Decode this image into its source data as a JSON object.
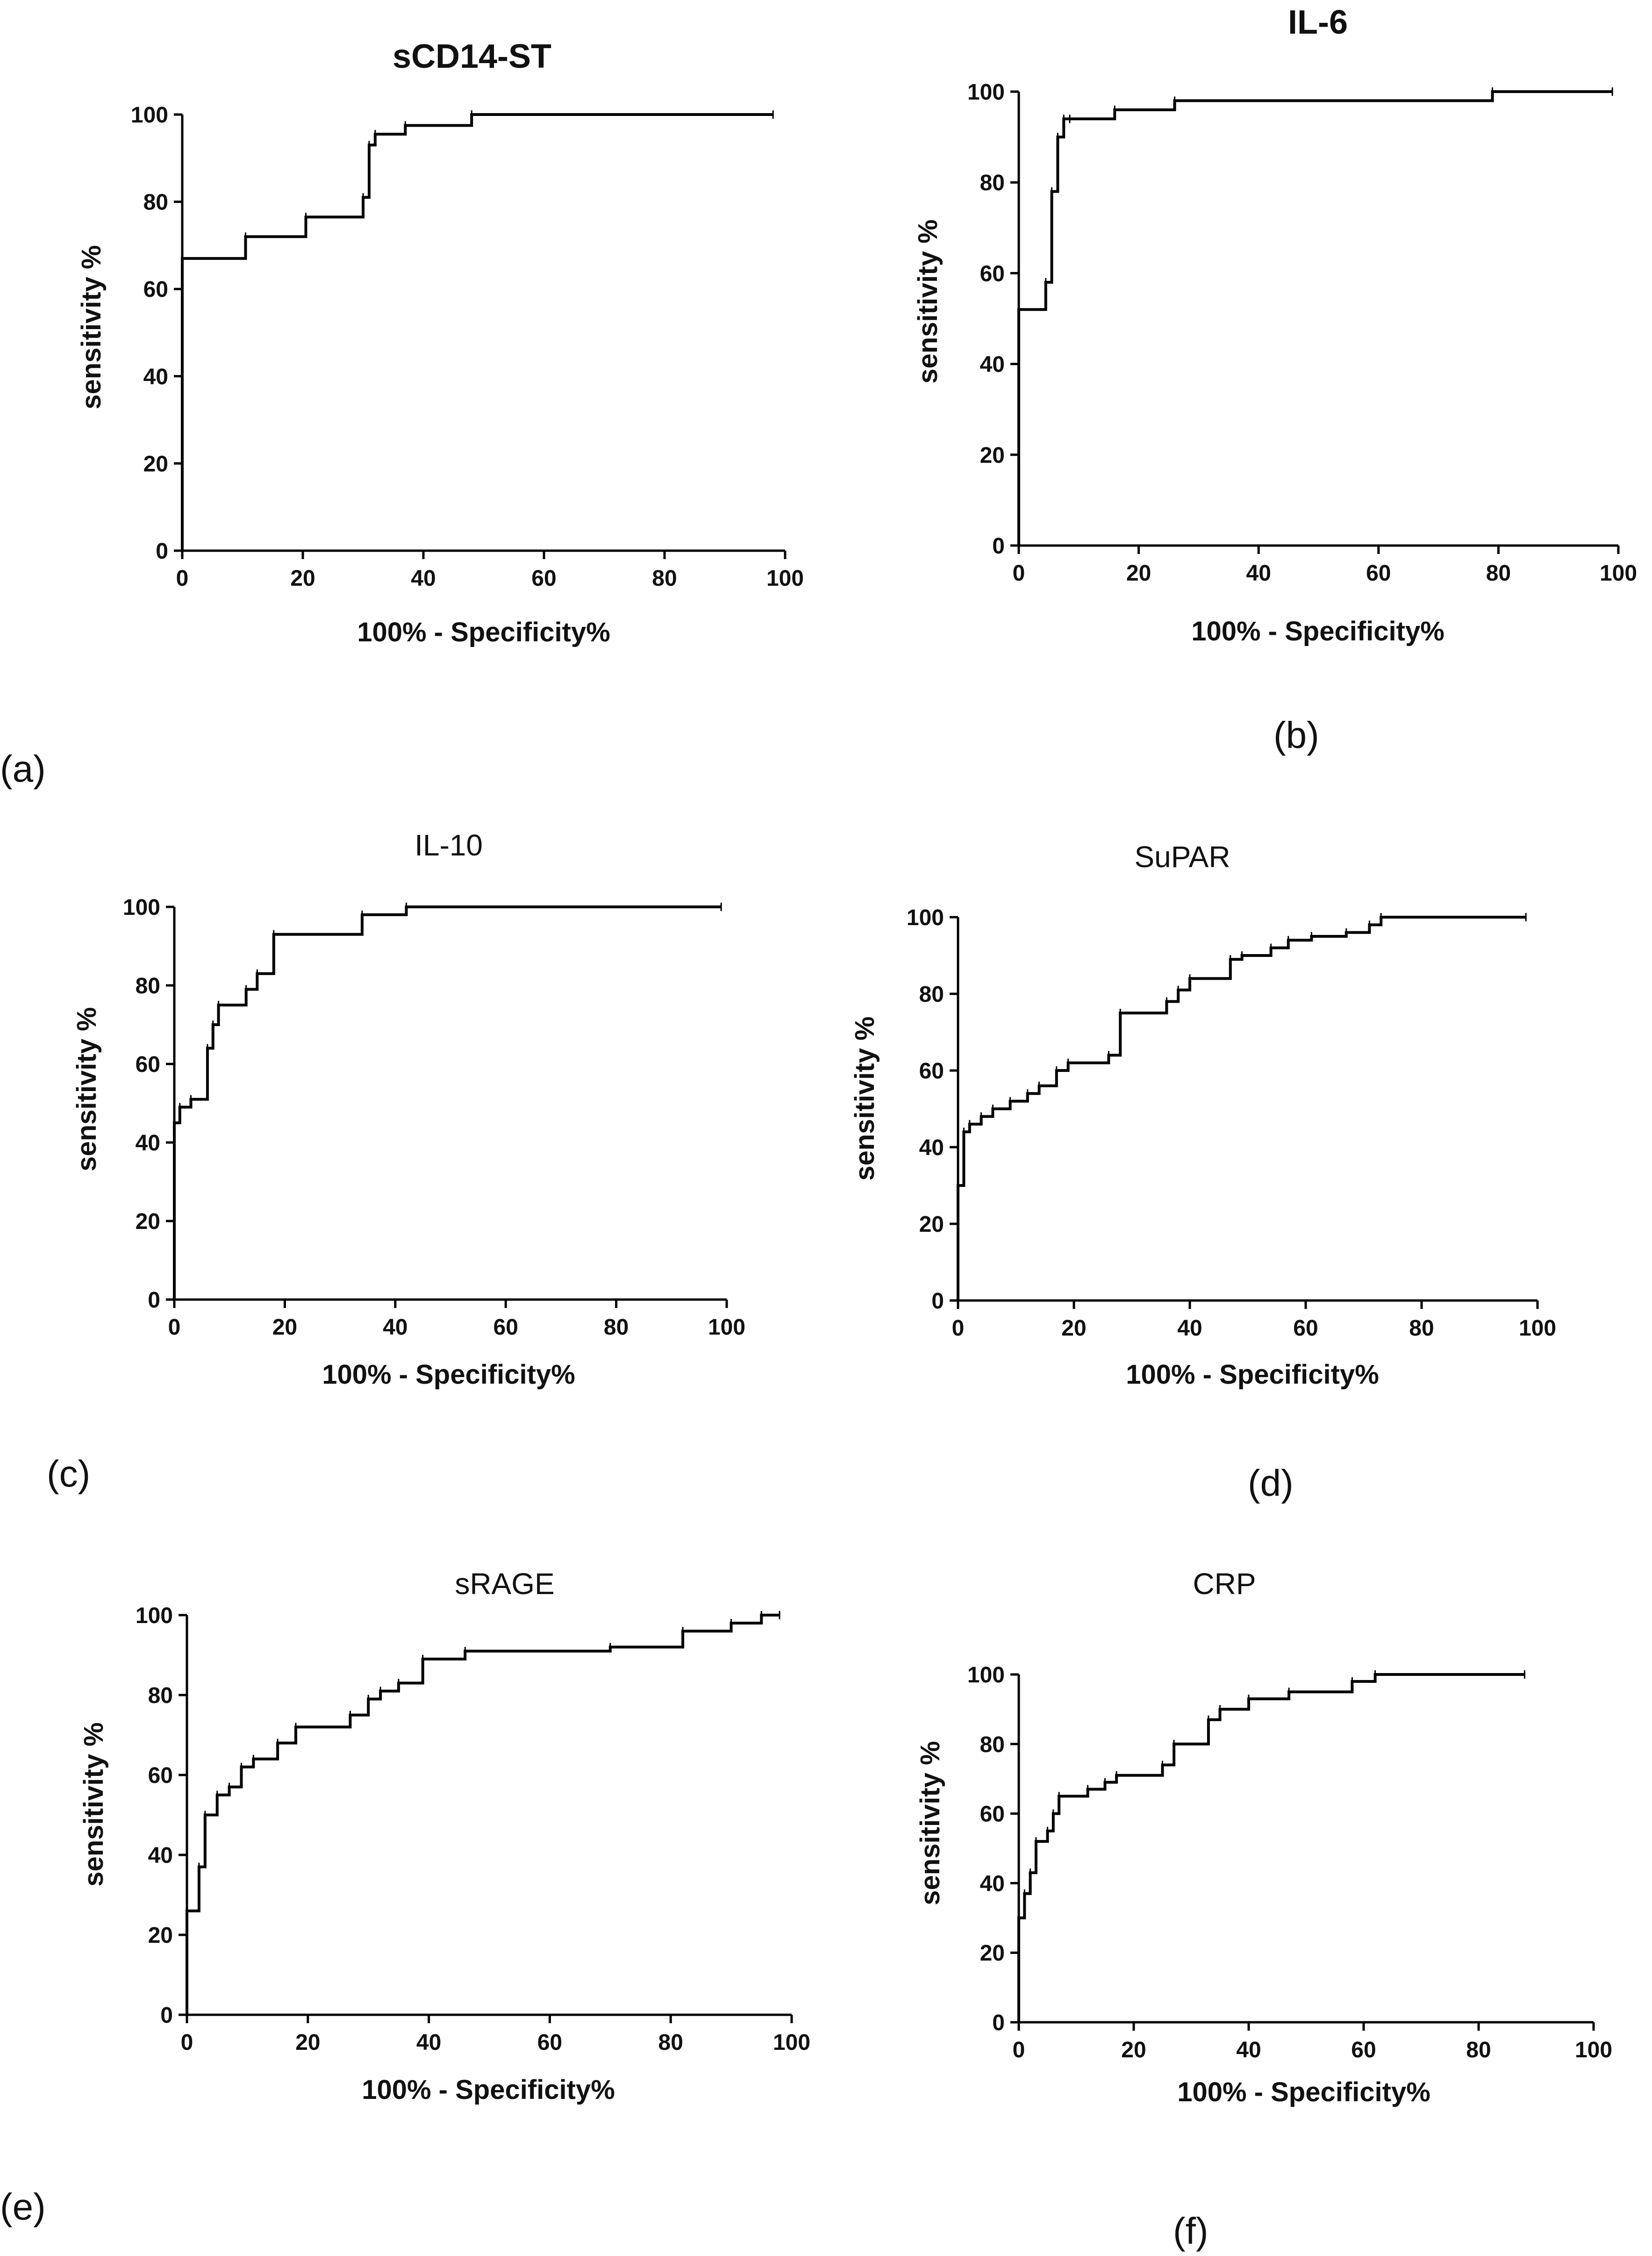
{
  "figure": {
    "panel_labels": [
      "(a)",
      "(b)",
      "(c)",
      "(d)",
      "(e)",
      "(f)"
    ]
  },
  "chart_data": [
    {
      "type": "line",
      "panel": "(a)",
      "title": "sCD14-ST",
      "xlabel": "100% - Specificity%",
      "ylabel": "sensitivity %",
      "xlim": [
        0,
        100
      ],
      "ylim": [
        0,
        100
      ],
      "xticks": [
        0,
        20,
        40,
        60,
        80,
        100
      ],
      "yticks": [
        0,
        20,
        40,
        60,
        80,
        100
      ],
      "grid": false,
      "step": true,
      "censor_ticks": true,
      "x": [
        0,
        0,
        10.5,
        20.5,
        30,
        31,
        32,
        37,
        48,
        98
      ],
      "y": [
        0,
        67,
        72,
        76.5,
        81,
        93,
        95.5,
        97.5,
        100,
        100
      ]
    },
    {
      "type": "line",
      "panel": "(b)",
      "title": "IL-6",
      "xlabel": "100% - Specificity%",
      "ylabel": "sensitivity %",
      "xlim": [
        0,
        100
      ],
      "ylim": [
        0,
        100
      ],
      "xticks": [
        0,
        20,
        40,
        60,
        80,
        100
      ],
      "yticks": [
        0,
        20,
        40,
        60,
        80,
        100
      ],
      "grid": false,
      "step": true,
      "censor_ticks": true,
      "x": [
        0,
        0,
        4.5,
        5.5,
        6.5,
        7.5,
        8.5,
        16,
        26,
        79,
        99
      ],
      "y": [
        0,
        52,
        58,
        78,
        90,
        94,
        94,
        96,
        98,
        100,
        100
      ]
    },
    {
      "type": "line",
      "panel": "(c)",
      "title": "IL-10",
      "xlabel": "100% - Specificity%",
      "ylabel": "sensitivity %",
      "xlim": [
        0,
        100
      ],
      "ylim": [
        0,
        100
      ],
      "xticks": [
        0,
        20,
        40,
        60,
        80,
        100
      ],
      "yticks": [
        0,
        20,
        40,
        60,
        80,
        100
      ],
      "grid": false,
      "step": true,
      "censor_ticks": true,
      "x": [
        0,
        0,
        1,
        3,
        6,
        7,
        8,
        13,
        15,
        18,
        34,
        42,
        99
      ],
      "y": [
        0,
        45,
        49,
        51,
        64,
        70,
        75,
        79,
        83,
        93,
        98,
        100,
        100
      ]
    },
    {
      "type": "line",
      "panel": "(d)",
      "title": "SuPAR",
      "xlabel": "100% - Specificity%",
      "ylabel": "sensitivity %",
      "xlim": [
        0,
        100
      ],
      "ylim": [
        0,
        100
      ],
      "xticks": [
        0,
        20,
        40,
        60,
        80,
        100
      ],
      "yticks": [
        0,
        20,
        40,
        60,
        80,
        100
      ],
      "grid": false,
      "step": true,
      "censor_ticks": true,
      "x": [
        0,
        0,
        1,
        2,
        4,
        6,
        9,
        12,
        14,
        17,
        19,
        26,
        28,
        36,
        38,
        40,
        47,
        49,
        54,
        57,
        61,
        67,
        71,
        73,
        98
      ],
      "y": [
        0,
        30,
        44,
        46,
        48,
        50,
        52,
        54,
        56,
        60,
        62,
        64,
        75,
        78,
        81,
        84,
        89,
        90,
        92,
        94,
        95,
        96,
        98,
        100,
        100
      ]
    },
    {
      "type": "line",
      "panel": "(e)",
      "title": "sRAGE",
      "xlabel": "100% - Specificity%",
      "ylabel": "sensitivity %",
      "xlim": [
        0,
        100
      ],
      "ylim": [
        0,
        100
      ],
      "xticks": [
        0,
        20,
        40,
        60,
        80,
        100
      ],
      "yticks": [
        0,
        20,
        40,
        60,
        80,
        100
      ],
      "grid": false,
      "step": true,
      "censor_ticks": true,
      "x": [
        0,
        0,
        2,
        3,
        5,
        7,
        9,
        11,
        15,
        18,
        27,
        30,
        32,
        35,
        39,
        46,
        70,
        82,
        90,
        95,
        98
      ],
      "y": [
        0,
        26,
        37,
        50,
        55,
        57,
        62,
        64,
        68,
        72,
        75,
        79,
        81,
        83,
        89,
        91,
        92,
        96,
        98,
        100,
        100
      ]
    },
    {
      "type": "line",
      "panel": "(f)",
      "title": "CRP",
      "xlabel": "100% - Specificity%",
      "ylabel": "sensitivity %",
      "xlim": [
        0,
        100
      ],
      "ylim": [
        0,
        100
      ],
      "xticks": [
        0,
        20,
        40,
        60,
        80,
        100
      ],
      "yticks": [
        0,
        20,
        40,
        60,
        80,
        100
      ],
      "grid": false,
      "step": true,
      "censor_ticks": true,
      "x": [
        0,
        0,
        1,
        2,
        3,
        5,
        6,
        7,
        12,
        15,
        17,
        25,
        27,
        33,
        35,
        40,
        47,
        58,
        62,
        88
      ],
      "y": [
        0,
        30,
        37,
        43,
        52,
        55,
        60,
        65,
        67,
        69,
        71,
        74,
        80,
        87,
        90,
        93,
        95,
        98,
        100,
        100
      ]
    }
  ]
}
